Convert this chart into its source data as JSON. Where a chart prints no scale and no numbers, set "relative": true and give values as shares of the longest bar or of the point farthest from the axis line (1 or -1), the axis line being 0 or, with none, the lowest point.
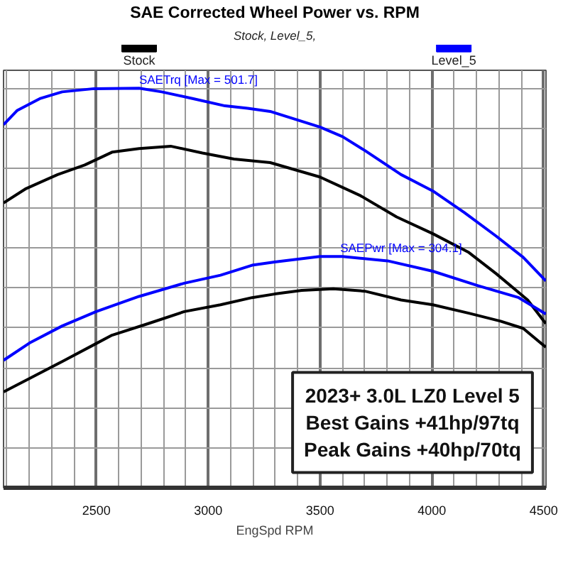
{
  "chart_data": {
    "type": "line",
    "title": "SAE Corrected Wheel Power vs. RPM",
    "subtitle": "Stock, Level_5,",
    "xlabel": "EngSpd RPM",
    "relative": true,
    "grid": true,
    "legend": "top",
    "tick_labels": "x",
    "xlim": [
      2085,
      4510
    ],
    "xticks": [
      {
        "value": 2100,
        "label": null
      },
      {
        "value": 2200,
        "label": null
      },
      {
        "value": 2300,
        "label": null
      },
      {
        "value": 2400,
        "label": null
      },
      2500,
      {
        "value": 2600,
        "label": null
      },
      {
        "value": 2700,
        "label": null
      },
      {
        "value": 2800,
        "label": null
      },
      {
        "value": 2900,
        "label": null
      },
      3000,
      {
        "value": 3100,
        "label": null
      },
      {
        "value": 3200,
        "label": null
      },
      {
        "value": 3300,
        "label": null
      },
      {
        "value": 3400,
        "label": null
      },
      3500,
      {
        "value": 3600,
        "label": null
      },
      {
        "value": 3700,
        "label": null
      },
      {
        "value": 3800,
        "label": null
      },
      {
        "value": 3900,
        "label": null
      },
      4000,
      {
        "value": 4100,
        "label": null
      },
      {
        "value": 4200,
        "label": null
      },
      {
        "value": 4300,
        "label": null
      },
      {
        "value": 4400,
        "label": null
      },
      4500
    ],
    "series": [
      {
        "name": "Stock",
        "color": "#000000",
        "x": [
          2085,
          2186,
          2327,
          2448,
          2570,
          2691,
          2832,
          2974,
          3115,
          3277,
          3499,
          3681,
          3842,
          4004,
          4165,
          4287,
          4428,
          4509
        ],
        "values": [
          0.713,
          0.749,
          0.784,
          0.808,
          0.84,
          0.849,
          0.855,
          0.838,
          0.823,
          0.814,
          0.778,
          0.731,
          0.678,
          0.636,
          0.589,
          0.536,
          0.47,
          0.411
        ]
      },
      {
        "color": "#000000",
        "x": [
          2085,
          2206,
          2347,
          2499,
          2570,
          2732,
          2893,
          3055,
          3196,
          3297,
          3418,
          3559,
          3701,
          3862,
          4004,
          4165,
          4307,
          4408,
          4509
        ],
        "values": [
          0.24,
          0.275,
          0.316,
          0.361,
          0.382,
          0.411,
          0.441,
          0.458,
          0.476,
          0.485,
          0.494,
          0.498,
          0.492,
          0.47,
          0.458,
          0.437,
          0.417,
          0.399,
          0.352
        ]
      },
      {
        "name": "Level_5",
        "color": "#0000ff",
        "x": [
          2085,
          2145,
          2247,
          2347,
          2489,
          2691,
          2792,
          2933,
          3075,
          3176,
          3277,
          3499,
          3600,
          3701,
          3862,
          4004,
          4145,
          4287,
          4408,
          4509
        ],
        "values": [
          0.909,
          0.944,
          0.974,
          0.991,
          0.999,
          1.0,
          0.991,
          0.974,
          0.956,
          0.95,
          0.942,
          0.903,
          0.879,
          0.844,
          0.784,
          0.743,
          0.689,
          0.63,
          0.577,
          0.518
        ]
      },
      {
        "color": "#0000ff",
        "x": [
          2085,
          2206,
          2347,
          2499,
          2691,
          2893,
          3055,
          3196,
          3297,
          3499,
          3600,
          3802,
          4004,
          4206,
          4388,
          4509
        ],
        "values": [
          0.319,
          0.364,
          0.405,
          0.441,
          0.479,
          0.512,
          0.532,
          0.557,
          0.565,
          0.579,
          0.579,
          0.568,
          0.542,
          0.506,
          0.476,
          0.435
        ]
      }
    ],
    "annotations": [
      {
        "text": "SAETrq [Max = 501.7]",
        "x": 2691,
        "y": 1.0
      },
      {
        "text": "SAEPwr [Max = 304.1]",
        "x": 3590,
        "y": 0.579
      },
      "2023+ 3.0L LZ0 Level 5\nBest Gains +41hp/97tq\nPeak Gains +40hp/70tq"
    ]
  }
}
